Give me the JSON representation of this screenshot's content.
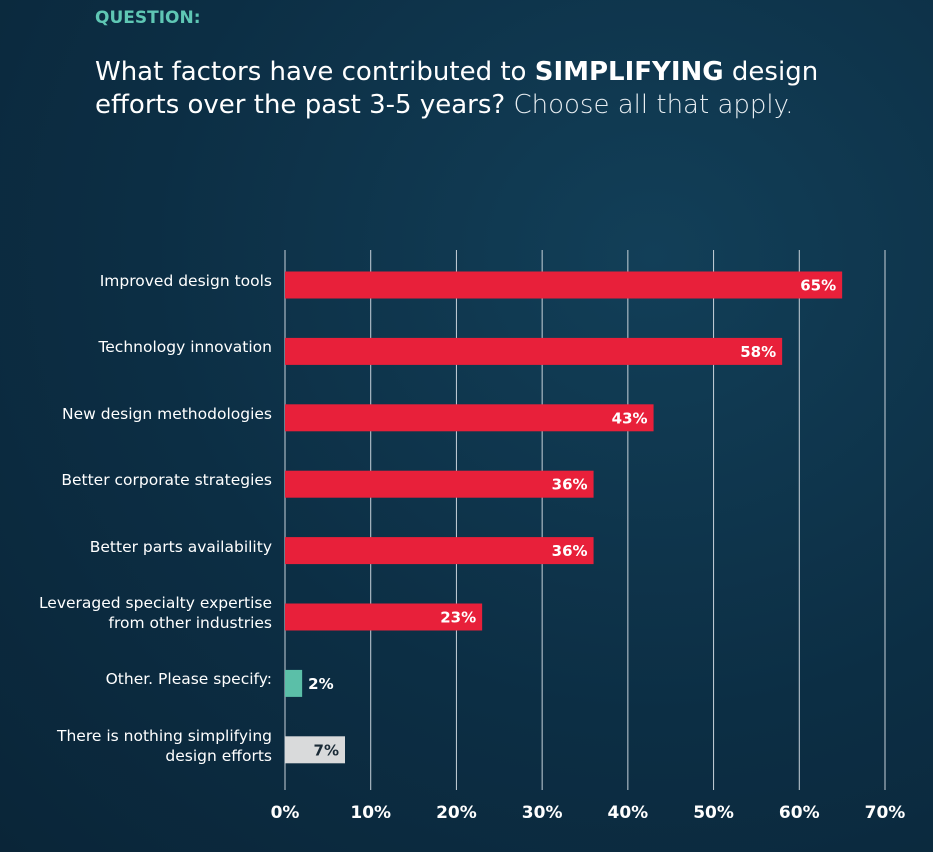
{
  "chart_data": {
    "type": "hbar",
    "heading": "QUESTION:",
    "question": {
      "part1": "What factors have contributed to ",
      "emphasis": "SIMPLIFYING",
      "part2": " design efforts over the past 3-5 years?",
      "part3": " Choose all that apply."
    },
    "categories": [
      "Improved design tools",
      "Technology innovation",
      "New design methodologies",
      "Better corporate strategies",
      "Better parts availability",
      "Leveraged specialty expertise from other industries",
      "Other. Please specify:",
      "There is nothing simplifying design efforts"
    ],
    "values": [
      65,
      58,
      43,
      36,
      36,
      23,
      2,
      7
    ],
    "value_labels": [
      "65%",
      "58%",
      "43%",
      "36%",
      "36%",
      "23%",
      "2%",
      "7%"
    ],
    "colors": [
      "#e8203a",
      "#e8203a",
      "#e8203a",
      "#e8203a",
      "#e8203a",
      "#e8203a",
      "#5bbfa8",
      "#d9dadb"
    ],
    "value_label_colors": [
      "#ffffff",
      "#ffffff",
      "#ffffff",
      "#ffffff",
      "#ffffff",
      "#ffffff",
      "#ffffff",
      "#1a2a36"
    ],
    "xlim": [
      0,
      70
    ],
    "xticks": [
      {
        "value": 0,
        "label": "0%"
      },
      {
        "value": 10,
        "label": "10%"
      },
      {
        "value": 20,
        "label": "20%"
      },
      {
        "value": 30,
        "label": "30%"
      },
      {
        "value": 40,
        "label": "40%"
      },
      {
        "value": 50,
        "label": "50%"
      },
      {
        "value": 60,
        "label": "60%"
      },
      {
        "value": 70,
        "label": "70%"
      }
    ],
    "grid": true
  }
}
